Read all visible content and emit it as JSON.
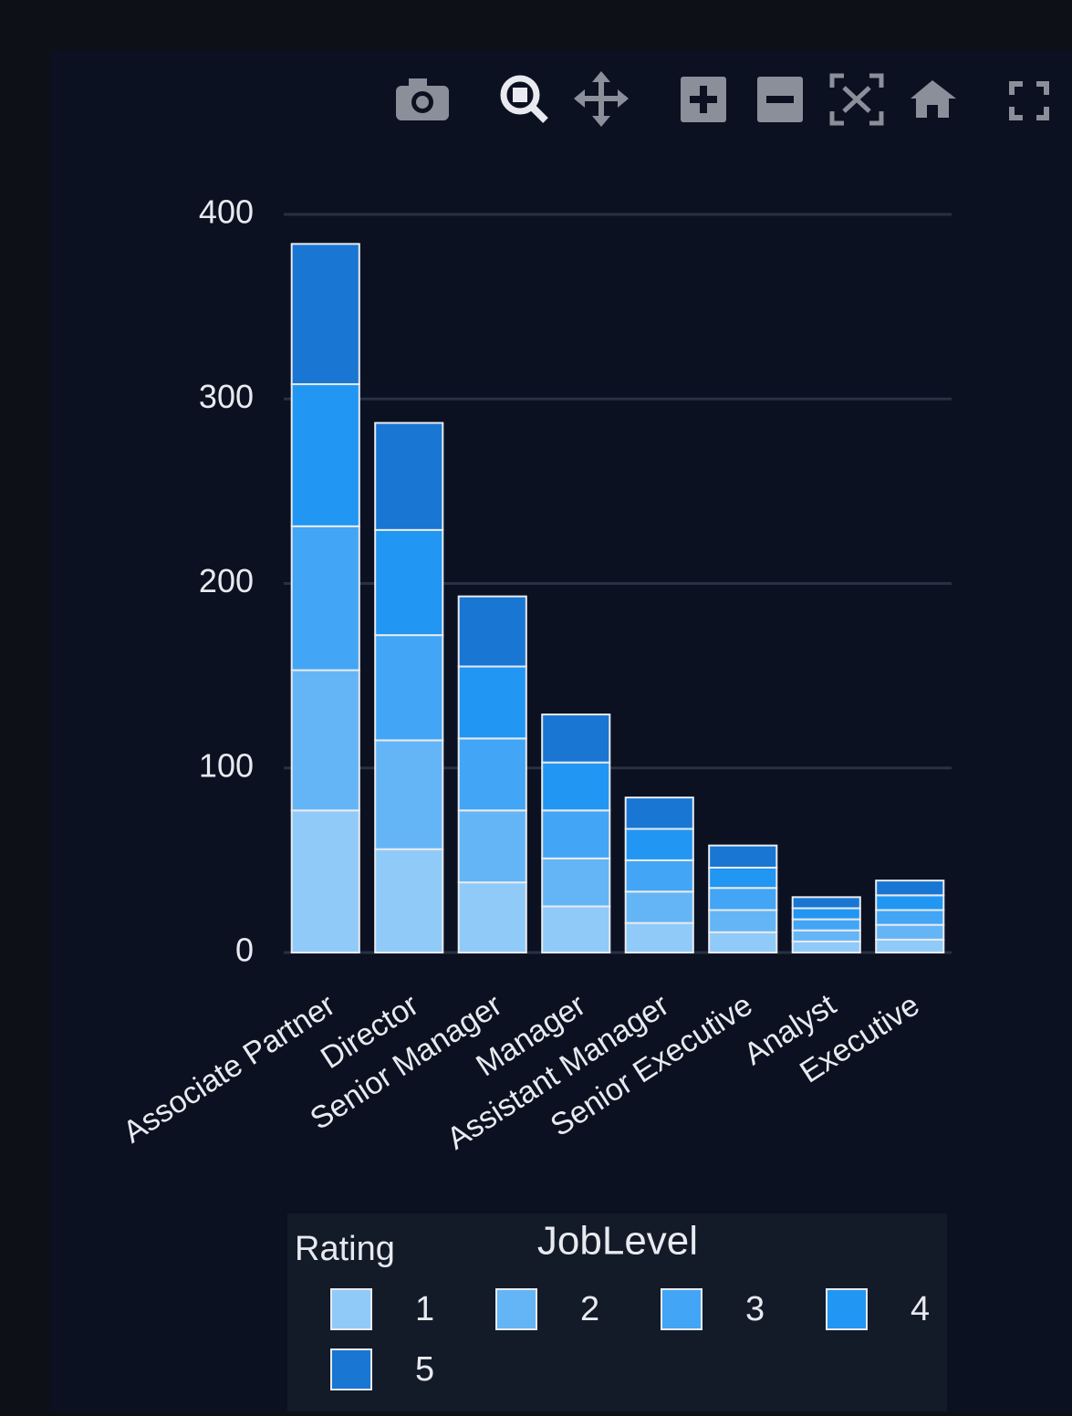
{
  "chart_data": {
    "type": "stacked_bar",
    "title": "JobLevel",
    "legend_title": "Rating",
    "categories": [
      "Associate Partner",
      "Director",
      "Senior Manager",
      "Manager",
      "Assistant Manager",
      "Senior Executive",
      "Analyst",
      "Executive"
    ],
    "series": [
      {
        "name": "1",
        "color": "#90caf9",
        "values": [
          77,
          56,
          38,
          25,
          16,
          11,
          6,
          7
        ]
      },
      {
        "name": "2",
        "color": "#64b5f6",
        "values": [
          76,
          59,
          39,
          26,
          17,
          12,
          6,
          8
        ]
      },
      {
        "name": "3",
        "color": "#42a5f5",
        "values": [
          78,
          57,
          39,
          26,
          17,
          12,
          6,
          8
        ]
      },
      {
        "name": "4",
        "color": "#2196f3",
        "values": [
          77,
          57,
          39,
          26,
          17,
          11,
          6,
          8
        ]
      },
      {
        "name": "5",
        "color": "#1976d2",
        "values": [
          76,
          58,
          38,
          26,
          17,
          12,
          6,
          8
        ]
      }
    ],
    "ylim": [
      0,
      400
    ],
    "yticks": [
      0,
      100,
      200,
      300,
      400
    ],
    "grid": true
  }
}
